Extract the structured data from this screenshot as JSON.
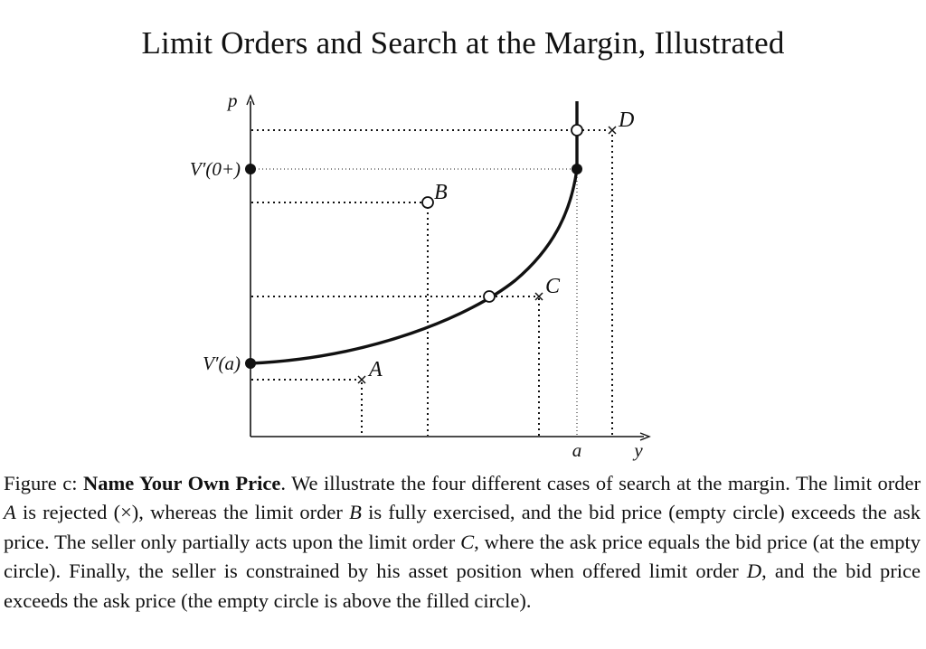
{
  "title": "Limit Orders and Search at the Margin, Illustrated",
  "diagram": {
    "y_axis_label": "p",
    "x_axis_label": "y",
    "x_tick_label": "a",
    "price_labels": {
      "v_zero_plus": "V′(0+)",
      "v_a": "V′(a)"
    },
    "points": {
      "A": "A",
      "B": "B",
      "C": "C",
      "D": "D"
    }
  },
  "caption": {
    "fig_label": "Figure c:",
    "bold_title": "Name Your Own Price",
    "s1": ". We illustrate the four different cases of search at the margin. The limit order ",
    "s1_var": "A",
    "s2": " is rejected (×), whereas the limit order ",
    "s2_var": "B",
    "s3": " is fully exercised, and the bid price (empty circle) exceeds the ask price. The seller only partially acts upon the limit order ",
    "s3_var": "C",
    "s4": ", where the ask price equals the bid price (at the empty circle). Finally, the seller is constrained by his asset position when offered limit order ",
    "s4_var": "D",
    "s5": ", and the bid price exceeds the ask price (the empty circle is above the filled circle)."
  }
}
